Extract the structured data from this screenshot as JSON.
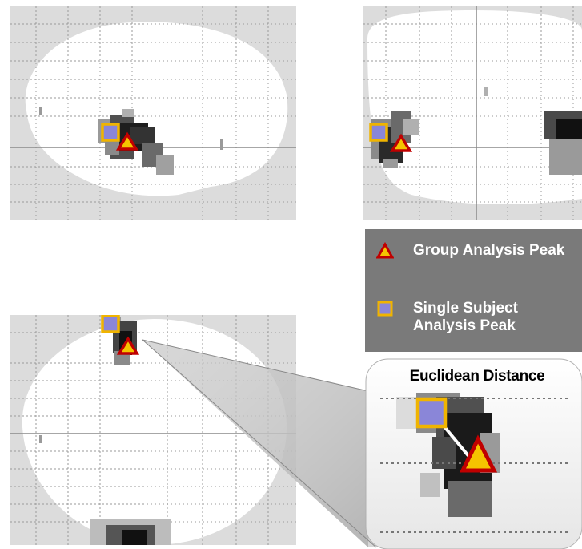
{
  "legend": {
    "group_label": "Group Analysis Peak",
    "single_label": "Single Subject Analysis Peak"
  },
  "zoom": {
    "title": "Euclidean Distance"
  },
  "colors": {
    "group_fill": "#f5c400",
    "group_stroke": "#c00000",
    "single_fill": "#8a86d8",
    "single_stroke": "#f0b400",
    "legend_bg": "#7a7a7a",
    "connector": "#ffffff"
  },
  "markers": {
    "group": "triangle-marker-icon",
    "single": "square-marker-icon"
  }
}
